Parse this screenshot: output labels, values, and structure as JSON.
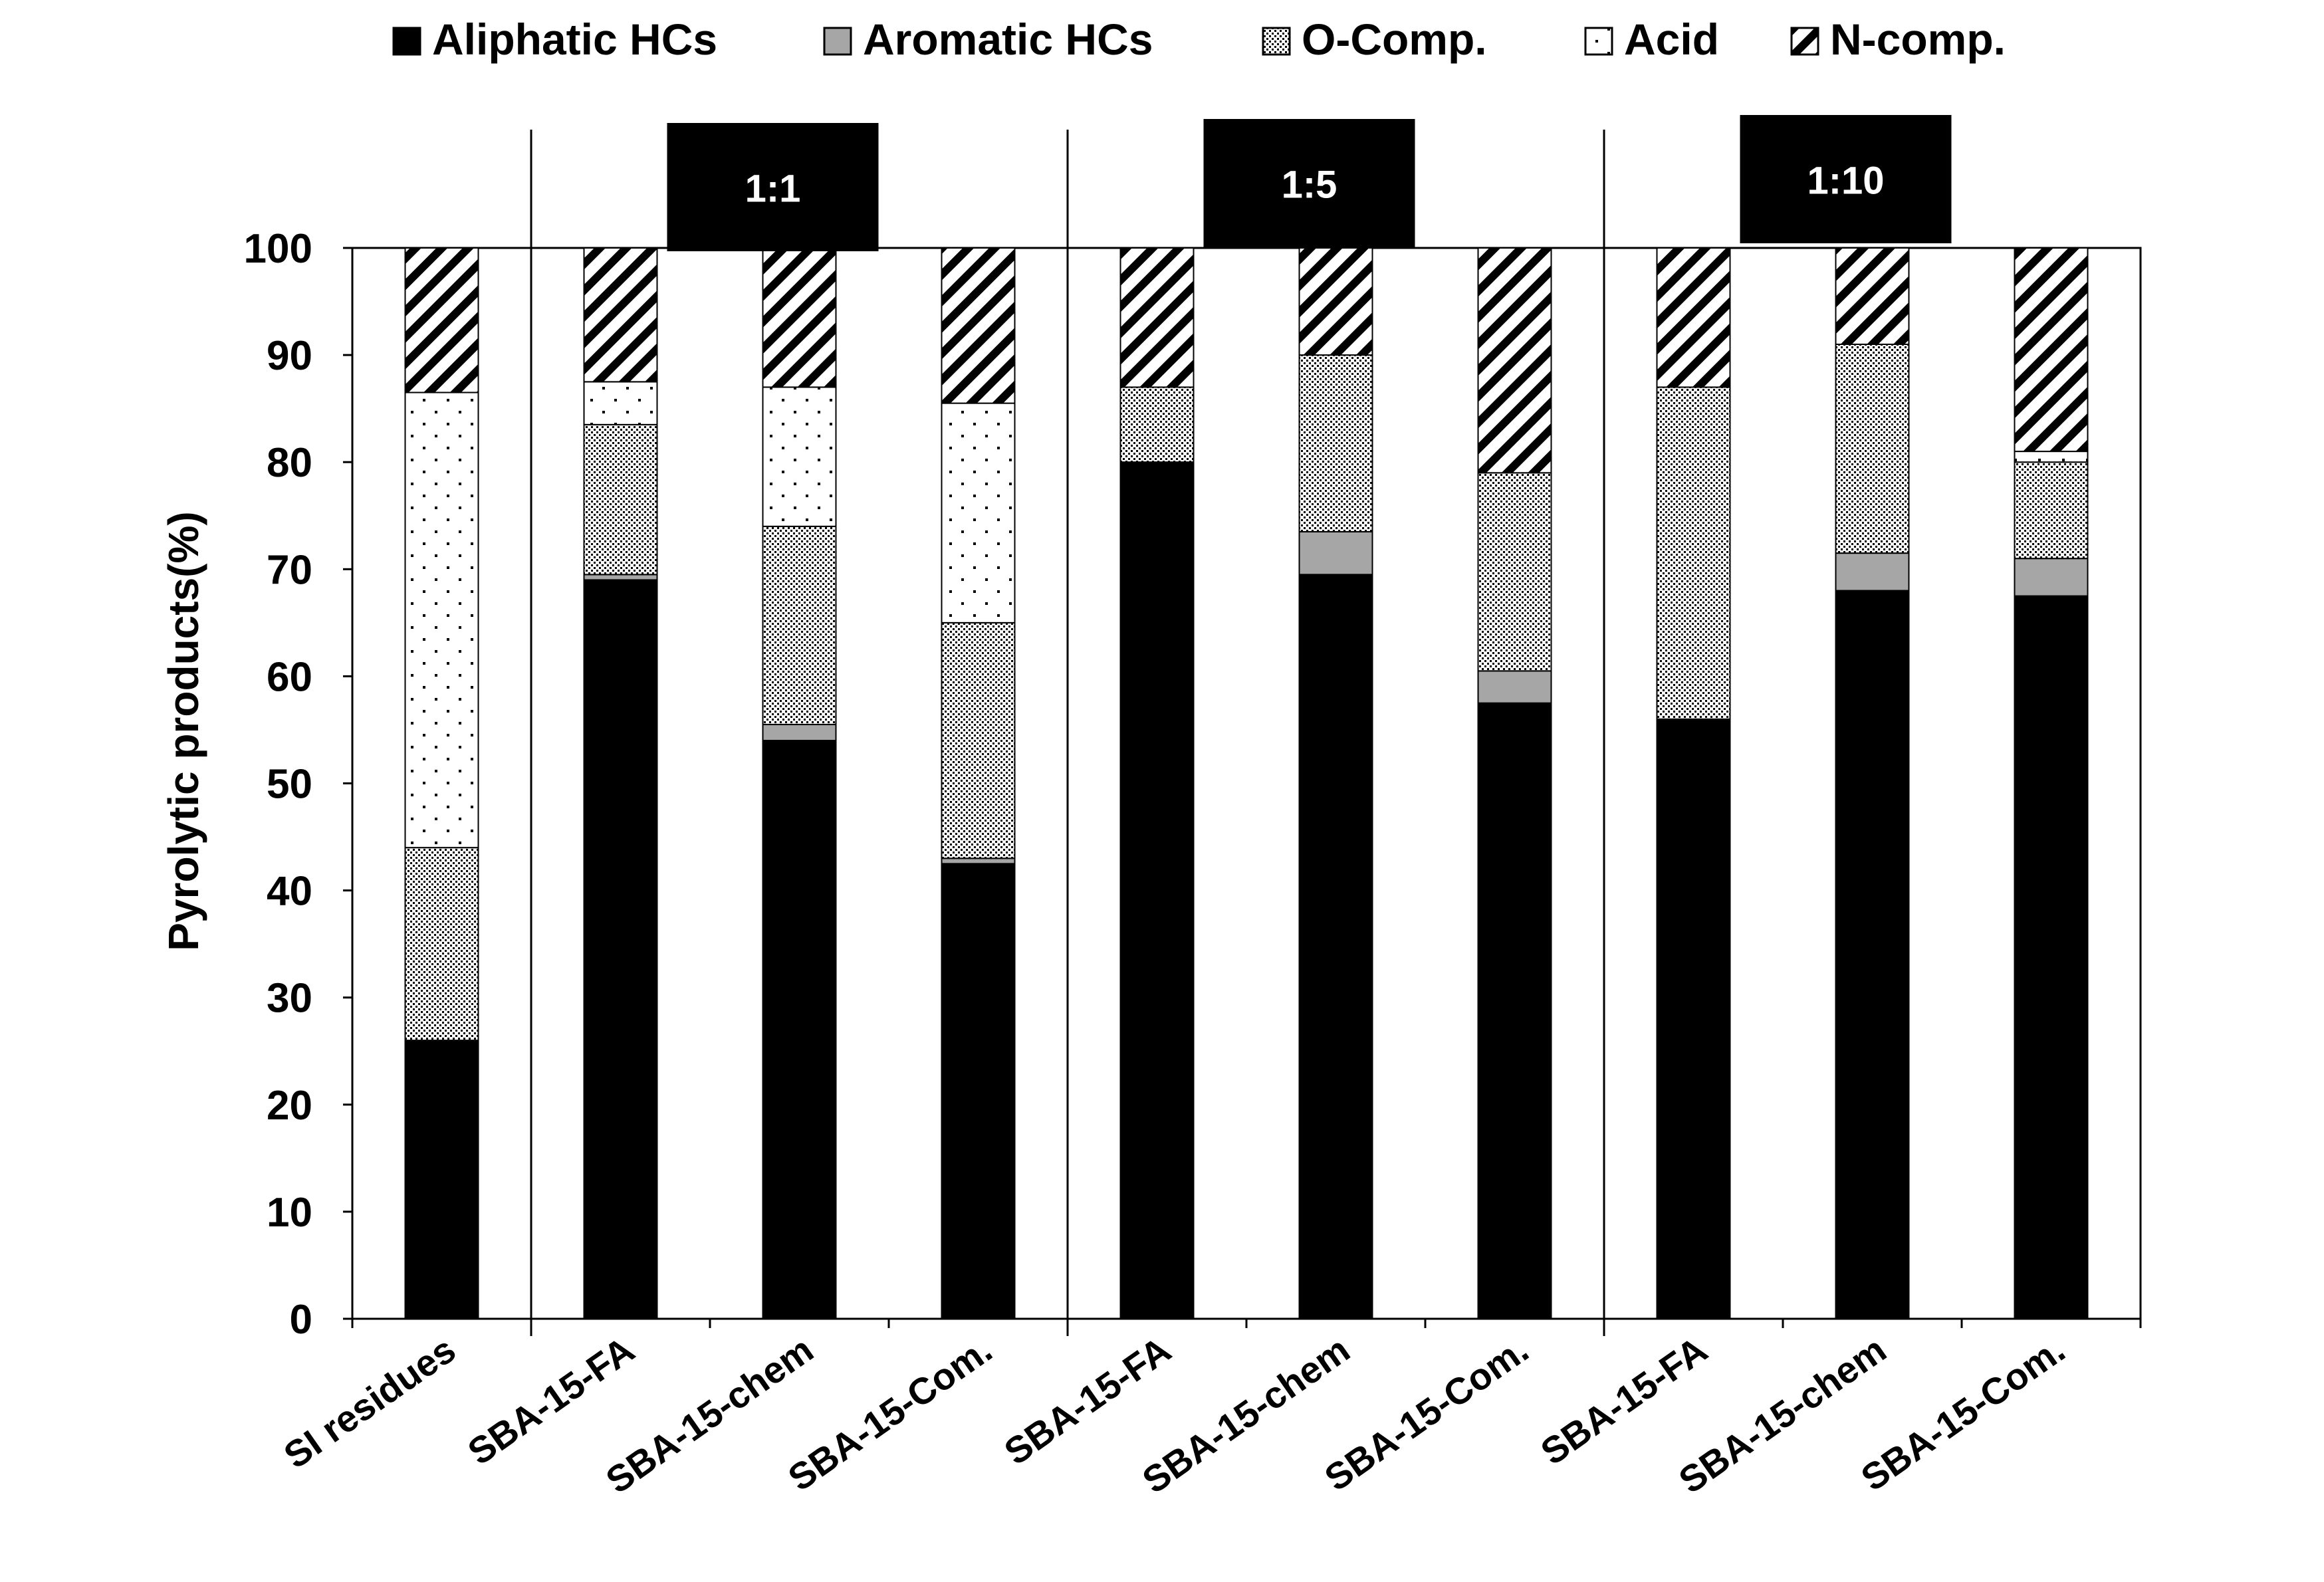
{
  "chart_data": {
    "type": "bar",
    "stacked": true,
    "title": "",
    "xlabel": "",
    "ylabel": "Pyrolytic products(%)",
    "ylim": [
      0,
      100
    ],
    "yticks": [
      0,
      10,
      20,
      30,
      40,
      50,
      60,
      70,
      80,
      90,
      100
    ],
    "grid": false,
    "legend_position": "top",
    "categories": [
      "SI residues",
      "SBA-15-FA",
      "SBA-15-chem",
      "SBA-15-Com.",
      "SBA-15-FA",
      "SBA-15-chem",
      "SBA-15-Com.",
      "SBA-15-FA",
      "SBA-15-chem",
      "SBA-15-Com."
    ],
    "groups": [
      {
        "label": "1:1",
        "categories": [
          1,
          2,
          3
        ]
      },
      {
        "label": "1:5",
        "categories": [
          4,
          5,
          6
        ]
      },
      {
        "label": "1:10",
        "categories": [
          7,
          8,
          9
        ]
      }
    ],
    "series": [
      {
        "name": "Aliphatic HCs",
        "pattern": "solid-black",
        "values": [
          26,
          69,
          54,
          42.5,
          80,
          69.5,
          57.5,
          56,
          68,
          67.5
        ]
      },
      {
        "name": "Aromatic HCs",
        "pattern": "solid-gray",
        "values": [
          0,
          0.5,
          1.5,
          0.5,
          0,
          4,
          3,
          0,
          3.5,
          3.5
        ]
      },
      {
        "name": "O-Comp.",
        "pattern": "dense-dots",
        "values": [
          18,
          14,
          18.5,
          22,
          7,
          16.5,
          18.5,
          31,
          19.5,
          9
        ]
      },
      {
        "name": "Acid",
        "pattern": "sparse-dots",
        "values": [
          42.5,
          4,
          13,
          20.5,
          0,
          0,
          0,
          0,
          0,
          1
        ]
      },
      {
        "name": "N-comp.",
        "pattern": "diagonal-hatch",
        "values": [
          13.5,
          12.5,
          13,
          14.5,
          13,
          10,
          21,
          13,
          9,
          19
        ]
      }
    ],
    "colors": {
      "aliphatic": "#000000",
      "aromatic": "#a6a6a6",
      "background": "#ffffff",
      "axis": "#000000"
    }
  }
}
